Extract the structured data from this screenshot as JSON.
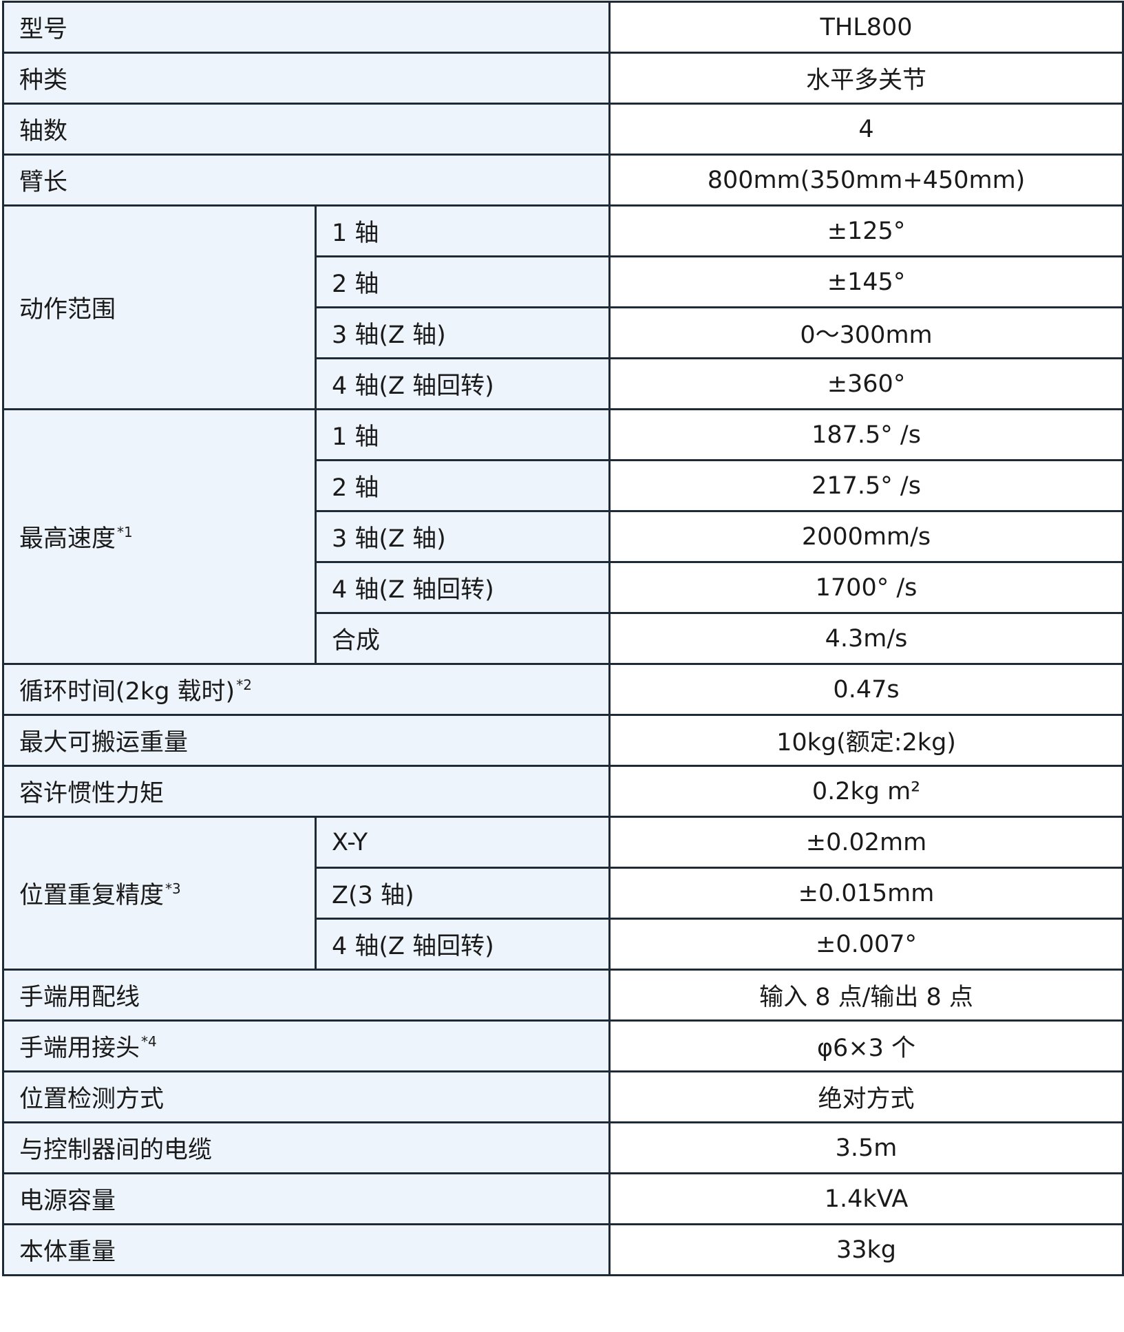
{
  "colors": {
    "label_bg": "#eef4fb",
    "value_bg": "#ffffff",
    "border": "#1e2a36"
  },
  "rows": [
    {
      "label": "型号",
      "value": "THL800"
    },
    {
      "label": "种类",
      "value": "水平多关节"
    },
    {
      "label": "轴数",
      "value": "4"
    },
    {
      "label": "臂长",
      "value": "800mm(350mm+450mm)"
    },
    {
      "label": "动作范围",
      "note": "",
      "subs": [
        {
          "label": "1 轴",
          "value": "±125°"
        },
        {
          "label": "2 轴",
          "value": "±145°"
        },
        {
          "label": "3 轴(Z 轴)",
          "value": "0〜300mm"
        },
        {
          "label": "4 轴(Z 轴回转)",
          "value": "±360°"
        }
      ]
    },
    {
      "label": "最高速度",
      "note": "*1",
      "subs": [
        {
          "label": "1 轴",
          "value": "187.5° /s"
        },
        {
          "label": "2 轴",
          "value": "217.5° /s"
        },
        {
          "label": "3 轴(Z 轴)",
          "value": "2000mm/s"
        },
        {
          "label": "4 轴(Z 轴回转)",
          "value": "1700° /s"
        },
        {
          "label": "合成",
          "value": "4.3m/s"
        }
      ]
    },
    {
      "label": "循环时间(2kg 载时)",
      "note": "*2",
      "value": "0.47s"
    },
    {
      "label": "最大可搬运重量",
      "value": "10kg(额定:2kg)"
    },
    {
      "label": "容许惯性力矩",
      "value": "0.2kg m²"
    },
    {
      "label": "位置重复精度",
      "note": "*3",
      "subs": [
        {
          "label": "X-Y",
          "value": "±0.02mm"
        },
        {
          "label": "Z(3 轴)",
          "value": "±0.015mm"
        },
        {
          "label": "4 轴(Z 轴回转)",
          "value": "±0.007°"
        }
      ]
    },
    {
      "label": "手端用配线",
      "value": "输入 8 点/输出 8 点"
    },
    {
      "label": "手端用接头",
      "note": "*4",
      "value": "φ6×3 个"
    },
    {
      "label": "位置检测方式",
      "value": "绝对方式"
    },
    {
      "label": "与控制器间的电缆",
      "value": "3.5m"
    },
    {
      "label": "电源容量",
      "value": "1.4kVA"
    },
    {
      "label": "本体重量",
      "value": "33kg"
    }
  ]
}
